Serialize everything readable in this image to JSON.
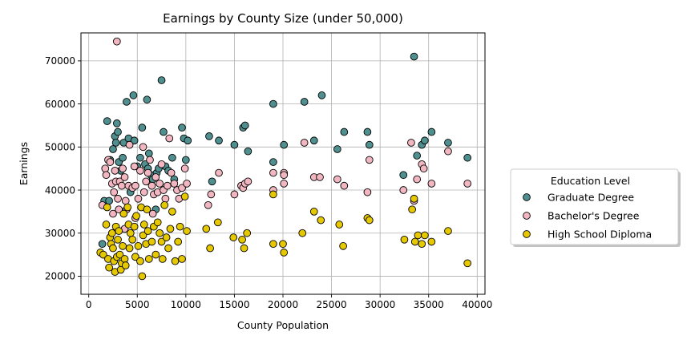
{
  "chart_data": {
    "type": "scatter",
    "title": "Earnings by County Size (under 50,000)",
    "xlabel": "County Population",
    "ylabel": "Earnings",
    "xlim": [
      -800,
      40800
    ],
    "ylim": [
      15800,
      76500
    ],
    "xticks": [
      0,
      5000,
      10000,
      15000,
      20000,
      25000,
      30000,
      35000,
      40000
    ],
    "yticks": [
      20000,
      30000,
      40000,
      50000,
      60000,
      70000
    ],
    "grid": true,
    "legend": {
      "title": "Education Level",
      "placement": "right-outside"
    },
    "series": [
      {
        "name": "Graduate Degree",
        "color": "#4f8f8f",
        "points": [
          [
            1900,
            56000
          ],
          [
            2200,
            47000
          ],
          [
            2500,
            49500
          ],
          [
            2700,
            52500
          ],
          [
            2800,
            51000
          ],
          [
            2900,
            55500
          ],
          [
            3000,
            53500
          ],
          [
            3100,
            46500
          ],
          [
            3300,
            44500
          ],
          [
            3500,
            47500
          ],
          [
            3600,
            51000
          ],
          [
            3900,
            60500
          ],
          [
            4100,
            52000
          ],
          [
            4300,
            39500
          ],
          [
            4600,
            62000
          ],
          [
            4700,
            51500
          ],
          [
            5000,
            45500
          ],
          [
            5300,
            47500
          ],
          [
            5500,
            54500
          ],
          [
            5800,
            46000
          ],
          [
            6000,
            61000
          ],
          [
            6100,
            45000
          ],
          [
            6200,
            48500
          ],
          [
            6400,
            43500
          ],
          [
            6600,
            42500
          ],
          [
            6900,
            35500
          ],
          [
            7000,
            44000
          ],
          [
            7200,
            45000
          ],
          [
            7500,
            65500
          ],
          [
            7700,
            53500
          ],
          [
            7900,
            45500
          ],
          [
            8200,
            44500
          ],
          [
            8600,
            47500
          ],
          [
            8800,
            42500
          ],
          [
            9600,
            54500
          ],
          [
            9800,
            52000
          ],
          [
            10000,
            47000
          ],
          [
            10200,
            51500
          ],
          [
            12400,
            52500
          ],
          [
            12700,
            42000
          ],
          [
            13400,
            51500
          ],
          [
            15000,
            50500
          ],
          [
            15900,
            54500
          ],
          [
            16100,
            55000
          ],
          [
            16400,
            49000
          ],
          [
            19000,
            46500
          ],
          [
            19000,
            60000
          ],
          [
            20100,
            50500
          ],
          [
            22200,
            60500
          ],
          [
            23200,
            51500
          ],
          [
            24000,
            62000
          ],
          [
            25600,
            49500
          ],
          [
            26300,
            53500
          ],
          [
            28700,
            53500
          ],
          [
            28900,
            50500
          ],
          [
            32400,
            43500
          ],
          [
            33500,
            71000
          ],
          [
            33800,
            48000
          ],
          [
            34300,
            50500
          ],
          [
            34600,
            51500
          ],
          [
            35300,
            53500
          ],
          [
            37000,
            51000
          ],
          [
            39000,
            47500
          ],
          [
            1600,
            37500
          ],
          [
            2100,
            37500
          ],
          [
            1400,
            27500
          ]
        ]
      },
      {
        "name": "Bachelor's Degree",
        "color": "#f1b6c0",
        "points": [
          [
            2900,
            74500
          ],
          [
            1400,
            36500
          ],
          [
            1700,
            45000
          ],
          [
            1800,
            43500
          ],
          [
            2000,
            47000
          ],
          [
            2200,
            46500
          ],
          [
            2400,
            41500
          ],
          [
            2600,
            39500
          ],
          [
            2700,
            44500
          ],
          [
            2800,
            42000
          ],
          [
            3000,
            38000
          ],
          [
            3100,
            35500
          ],
          [
            3200,
            42000
          ],
          [
            3400,
            41000
          ],
          [
            3500,
            45000
          ],
          [
            3700,
            43000
          ],
          [
            3900,
            35500
          ],
          [
            4100,
            41000
          ],
          [
            4200,
            50500
          ],
          [
            4500,
            40500
          ],
          [
            4700,
            45500
          ],
          [
            4800,
            41000
          ],
          [
            5100,
            38000
          ],
          [
            5300,
            44500
          ],
          [
            5600,
            50000
          ],
          [
            5700,
            39500
          ],
          [
            5900,
            42000
          ],
          [
            6100,
            44000
          ],
          [
            6300,
            47000
          ],
          [
            6500,
            41000
          ],
          [
            6700,
            39000
          ],
          [
            6900,
            43000
          ],
          [
            7100,
            39500
          ],
          [
            7300,
            41500
          ],
          [
            7500,
            46000
          ],
          [
            7700,
            40000
          ],
          [
            7900,
            38000
          ],
          [
            8100,
            41000
          ],
          [
            8300,
            52000
          ],
          [
            8500,
            44000
          ],
          [
            8800,
            41500
          ],
          [
            9100,
            40000
          ],
          [
            9300,
            38000
          ],
          [
            9600,
            40500
          ],
          [
            9900,
            45000
          ],
          [
            10100,
            41500
          ],
          [
            12300,
            36500
          ],
          [
            12600,
            39000
          ],
          [
            13400,
            44000
          ],
          [
            15000,
            39000
          ],
          [
            15700,
            41000
          ],
          [
            15900,
            40500
          ],
          [
            16100,
            41500
          ],
          [
            16400,
            42000
          ],
          [
            19000,
            40000
          ],
          [
            19000,
            44000
          ],
          [
            20100,
            44000
          ],
          [
            20100,
            41500
          ],
          [
            20100,
            43500
          ],
          [
            22200,
            51000
          ],
          [
            23200,
            43000
          ],
          [
            23800,
            43000
          ],
          [
            25600,
            42500
          ],
          [
            26300,
            41000
          ],
          [
            28700,
            39500
          ],
          [
            28900,
            47000
          ],
          [
            32400,
            40000
          ],
          [
            33200,
            51000
          ],
          [
            33500,
            37500
          ],
          [
            33800,
            42500
          ],
          [
            34300,
            46000
          ],
          [
            34500,
            45000
          ],
          [
            35300,
            41500
          ],
          [
            37000,
            49000
          ],
          [
            39000,
            41500
          ],
          [
            2500,
            34500
          ],
          [
            3800,
            37500
          ],
          [
            6600,
            34500
          ],
          [
            4800,
            33500
          ],
          [
            3700,
            31000
          ]
        ]
      },
      {
        "name": "High School Diploma",
        "color": "#e6c800",
        "points": [
          [
            1200,
            25500
          ],
          [
            1500,
            25000
          ],
          [
            1800,
            32000
          ],
          [
            1900,
            36000
          ],
          [
            2000,
            24000
          ],
          [
            2100,
            22000
          ],
          [
            2200,
            29000
          ],
          [
            2300,
            27500
          ],
          [
            2400,
            30000
          ],
          [
            2500,
            26500
          ],
          [
            2600,
            23500
          ],
          [
            2700,
            21000
          ],
          [
            2800,
            31500
          ],
          [
            2900,
            24500
          ],
          [
            3000,
            28500
          ],
          [
            3100,
            30500
          ],
          [
            3200,
            25000
          ],
          [
            3300,
            21500
          ],
          [
            3400,
            23000
          ],
          [
            3500,
            27000
          ],
          [
            3600,
            34500
          ],
          [
            3700,
            24000
          ],
          [
            3800,
            22500
          ],
          [
            4000,
            36000
          ],
          [
            4100,
            32000
          ],
          [
            4200,
            26500
          ],
          [
            4300,
            30000
          ],
          [
            4500,
            28500
          ],
          [
            4700,
            31500
          ],
          [
            4800,
            24500
          ],
          [
            4900,
            34000
          ],
          [
            5100,
            27000
          ],
          [
            5300,
            23500
          ],
          [
            5400,
            36000
          ],
          [
            5500,
            20000
          ],
          [
            5600,
            29500
          ],
          [
            5700,
            32000
          ],
          [
            5900,
            27500
          ],
          [
            6000,
            35500
          ],
          [
            6100,
            30500
          ],
          [
            6200,
            24000
          ],
          [
            6500,
            28000
          ],
          [
            6700,
            31500
          ],
          [
            6900,
            25000
          ],
          [
            7100,
            32500
          ],
          [
            7300,
            30000
          ],
          [
            7500,
            28000
          ],
          [
            7600,
            24000
          ],
          [
            7800,
            36500
          ],
          [
            8000,
            29000
          ],
          [
            8200,
            26500
          ],
          [
            8400,
            31000
          ],
          [
            8600,
            35000
          ],
          [
            8900,
            23500
          ],
          [
            9200,
            28000
          ],
          [
            9400,
            31500
          ],
          [
            9600,
            24000
          ],
          [
            9900,
            38500
          ],
          [
            10100,
            30500
          ],
          [
            12100,
            31000
          ],
          [
            12500,
            26500
          ],
          [
            13300,
            32500
          ],
          [
            14900,
            29000
          ],
          [
            15800,
            28500
          ],
          [
            16000,
            26500
          ],
          [
            16300,
            30000
          ],
          [
            19000,
            39000
          ],
          [
            19000,
            27500
          ],
          [
            20000,
            27500
          ],
          [
            20100,
            25500
          ],
          [
            22000,
            30000
          ],
          [
            23200,
            35000
          ],
          [
            23900,
            33000
          ],
          [
            26200,
            27000
          ],
          [
            25800,
            32000
          ],
          [
            28700,
            33500
          ],
          [
            28900,
            33000
          ],
          [
            32500,
            28500
          ],
          [
            33300,
            35500
          ],
          [
            33500,
            38000
          ],
          [
            33600,
            28000
          ],
          [
            33900,
            29500
          ],
          [
            34300,
            27500
          ],
          [
            34600,
            29500
          ],
          [
            35300,
            28000
          ],
          [
            37000,
            30500
          ],
          [
            39000,
            23000
          ]
        ]
      }
    ]
  }
}
